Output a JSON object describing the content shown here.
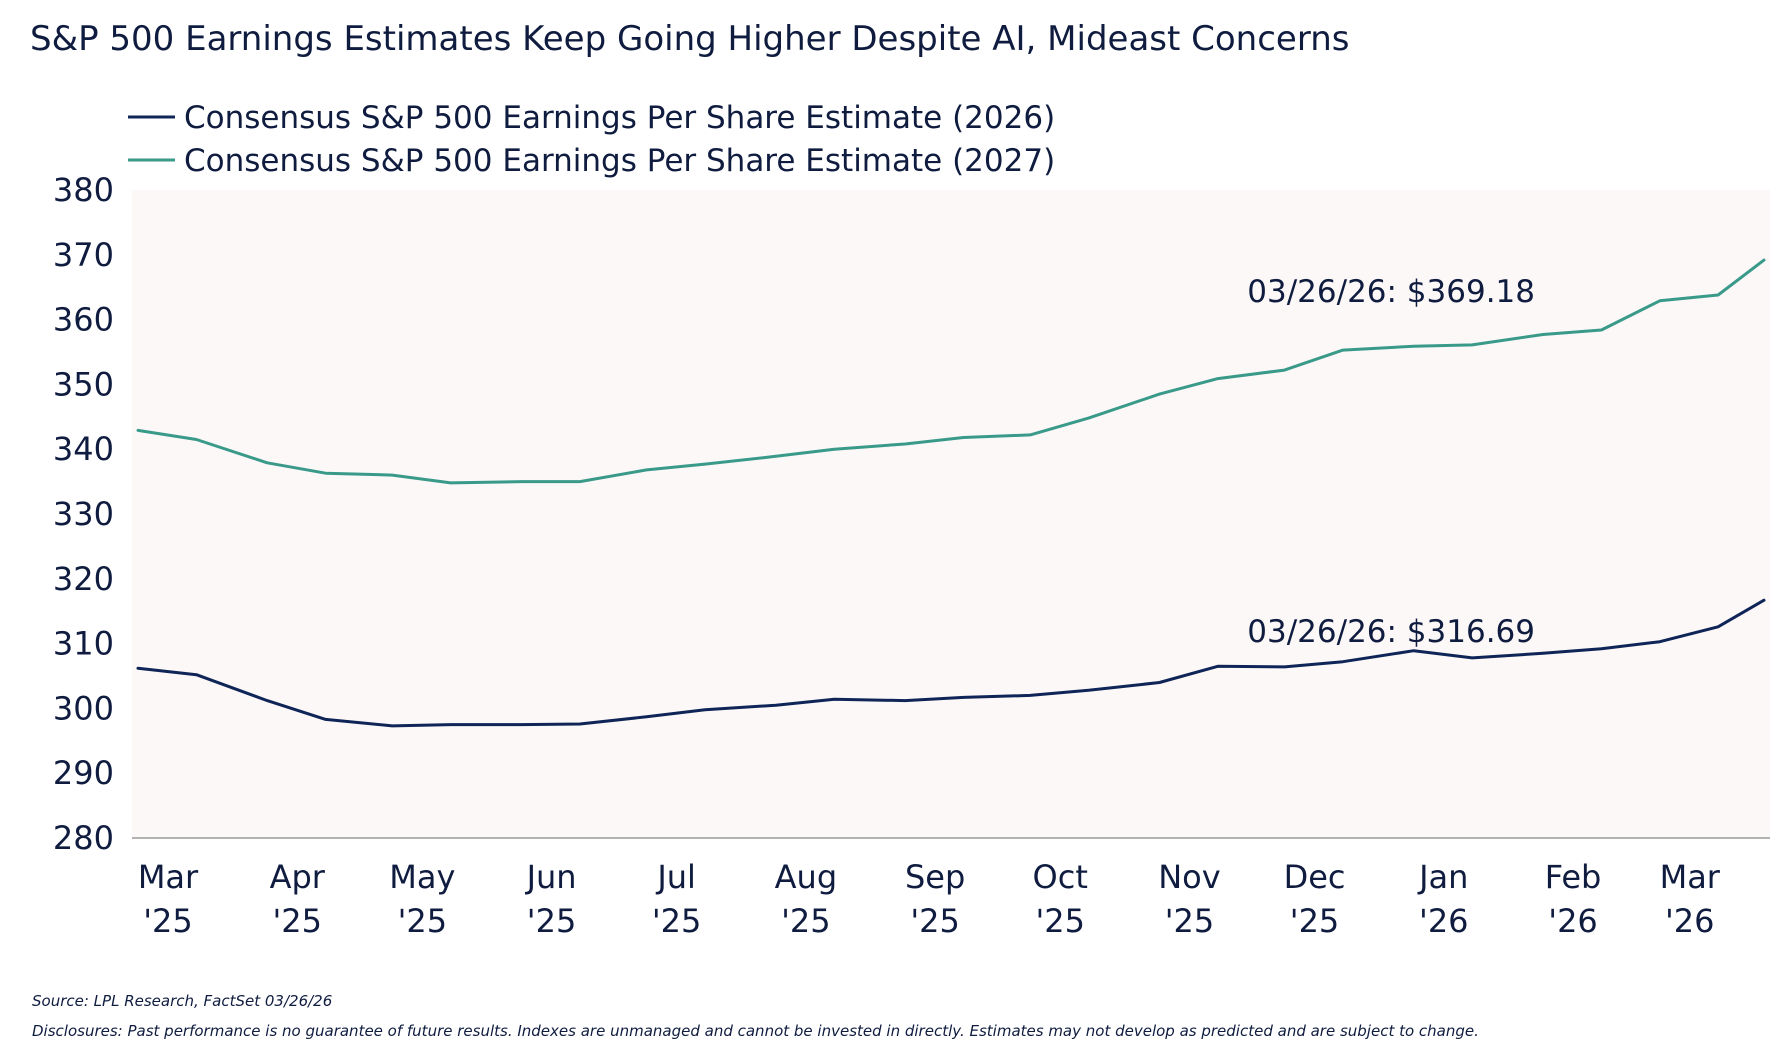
{
  "chart_data": {
    "type": "line",
    "title": "S&P 500 Earnings Estimates Keep Going Higher Despite AI, Mideast Concerns",
    "xlabel": "",
    "ylabel": "",
    "ylim": [
      280,
      380
    ],
    "yticks": [
      380,
      370,
      360,
      350,
      340,
      330,
      320,
      310,
      300,
      290,
      280
    ],
    "xticks": [
      {
        "month": "Mar",
        "year": "'25"
      },
      {
        "month": "Apr",
        "year": "'25"
      },
      {
        "month": "May",
        "year": "'25"
      },
      {
        "month": "Jun",
        "year": "'25"
      },
      {
        "month": "Jul",
        "year": "'25"
      },
      {
        "month": "Aug",
        "year": "'25"
      },
      {
        "month": "Sep",
        "year": "'25"
      },
      {
        "month": "Oct",
        "year": "'25"
      },
      {
        "month": "Nov",
        "year": "'25"
      },
      {
        "month": "Dec",
        "year": "'25"
      },
      {
        "month": "Jan",
        "year": "'26"
      },
      {
        "month": "Feb",
        "year": "'26"
      },
      {
        "month": "Mar",
        "year": "'26"
      }
    ],
    "x": [
      "2025-03-01",
      "2025-03-15",
      "2025-04-01",
      "2025-04-15",
      "2025-05-01",
      "2025-05-15",
      "2025-06-01",
      "2025-06-15",
      "2025-07-01",
      "2025-07-15",
      "2025-08-01",
      "2025-08-15",
      "2025-09-01",
      "2025-09-15",
      "2025-10-01",
      "2025-10-15",
      "2025-11-01",
      "2025-11-15",
      "2025-12-01",
      "2025-12-15",
      "2026-01-01",
      "2026-01-15",
      "2026-02-01",
      "2026-02-15",
      "2026-03-01",
      "2026-03-15",
      "2026-03-26"
    ],
    "grid": false,
    "legend_position": "top-left",
    "series": [
      {
        "name": "Consensus S&P 500 Earnings Per Share Estimate (2026)",
        "color": "#0f2557",
        "values": [
          306.2,
          305.2,
          301.2,
          298.3,
          297.3,
          297.5,
          297.5,
          297.6,
          298.7,
          299.8,
          300.5,
          301.4,
          301.2,
          301.7,
          302.0,
          302.8,
          304.0,
          306.5,
          306.4,
          307.2,
          308.9,
          307.8,
          308.5,
          309.2,
          310.3,
          312.6,
          316.69
        ]
      },
      {
        "name": "Consensus S&P 500 Earnings Per Share Estimate (2027)",
        "color": "#3a9a8a",
        "values": [
          342.9,
          341.5,
          337.9,
          336.3,
          336.0,
          334.8,
          335.0,
          335.0,
          336.8,
          337.7,
          338.9,
          340.0,
          340.8,
          341.8,
          342.2,
          344.8,
          348.5,
          350.9,
          352.2,
          355.3,
          355.9,
          356.1,
          357.7,
          358.4,
          362.9,
          363.8,
          369.18
        ]
      }
    ],
    "annotations": [
      {
        "text": "03/26/26: $369.18",
        "series": 1
      },
      {
        "text": "03/26/26: $316.69",
        "series": 0
      }
    ]
  },
  "footer": {
    "source": "Source: LPL Research, FactSet 03/26/26",
    "disclosure": "Disclosures: Past performance is no guarantee of future results. Indexes are unmanaged and cannot be invested in directly. Estimates may not develop as predicted and are subject to change."
  }
}
